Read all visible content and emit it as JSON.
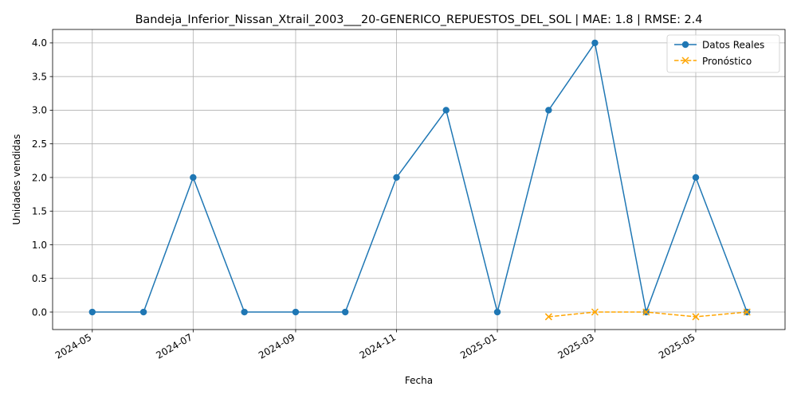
{
  "chart_data": {
    "type": "line",
    "title": "Bandeja_Inferior_Nissan_Xtrail_2003___20-GENERICO_REPUESTOS_DEL_SOL | MAE: 1.8 | RMSE: 2.4",
    "xlabel": "Fecha",
    "ylabel": "Unidades vendidas",
    "ylim": [
      -0.26,
      4.2
    ],
    "xlim": [
      "2024-04-07",
      "2025-06-24"
    ],
    "grid": true,
    "legend_position": "top-right",
    "x_tick_labels": [
      "2024-05",
      "2024-07",
      "2024-09",
      "2024-11",
      "2025-01",
      "2025-03",
      "2025-05"
    ],
    "x_tick_dates": [
      "2024-05-01",
      "2024-07-01",
      "2024-09-01",
      "2024-11-01",
      "2025-01-01",
      "2025-03-01",
      "2025-05-01"
    ],
    "y_ticks": [
      0.0,
      0.5,
      1.0,
      1.5,
      2.0,
      2.5,
      3.0,
      3.5,
      4.0
    ],
    "y_tick_labels": [
      "0.0",
      "0.5",
      "1.0",
      "1.5",
      "2.0",
      "2.5",
      "3.0",
      "3.5",
      "4.0"
    ],
    "series": [
      {
        "name": "Datos Reales",
        "color": "#1f77b4",
        "marker": "circle",
        "line_style": "solid",
        "x": [
          "2024-05-01",
          "2024-06-01",
          "2024-07-01",
          "2024-08-01",
          "2024-09-01",
          "2024-10-01",
          "2024-11-01",
          "2024-12-01",
          "2025-01-01",
          "2025-02-01",
          "2025-03-01",
          "2025-04-01",
          "2025-05-01",
          "2025-06-01"
        ],
        "values": [
          0,
          0,
          2,
          0,
          0,
          0,
          2,
          3,
          0,
          3,
          4,
          0,
          2,
          0
        ]
      },
      {
        "name": "Pronóstico",
        "color": "#ffa500",
        "marker": "x",
        "line_style": "dashed",
        "x": [
          "2025-02-01",
          "2025-03-01",
          "2025-04-01",
          "2025-05-01",
          "2025-06-01"
        ],
        "values": [
          -0.07,
          0.0,
          0.0,
          -0.07,
          0.0
        ]
      }
    ]
  }
}
